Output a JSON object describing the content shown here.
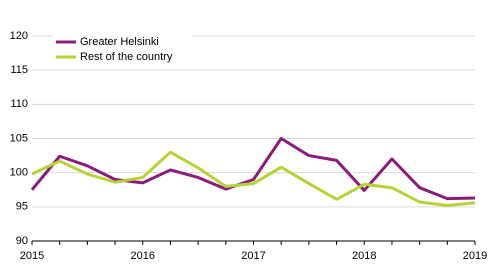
{
  "chart_data": {
    "type": "line",
    "categories": [
      "2015",
      null,
      null,
      null,
      "2016",
      null,
      null,
      null,
      "2017",
      null,
      null,
      null,
      "2018",
      null,
      null,
      null,
      "2019"
    ],
    "series": [
      {
        "name": "Greater Helsinki",
        "color": "#8c1c7c",
        "values": [
          97.5,
          102.4,
          101,
          99,
          98.5,
          100.4,
          99.3,
          97.6,
          99,
          105,
          102.5,
          101.8,
          97.4,
          102,
          97.8,
          96.2,
          96.3
        ]
      },
      {
        "name": "Rest of the country",
        "color": "#b5d334",
        "values": [
          99.8,
          101.7,
          99.8,
          98.6,
          99.3,
          103,
          100.7,
          98,
          98.4,
          100.8,
          98.4,
          96.1,
          98.3,
          97.8,
          95.7,
          95.2,
          95.6
        ]
      }
    ],
    "ylim": [
      90,
      120
    ],
    "yticks": [
      90,
      95,
      100,
      105,
      110,
      115,
      120
    ],
    "grid": true,
    "legend": "upper left"
  }
}
